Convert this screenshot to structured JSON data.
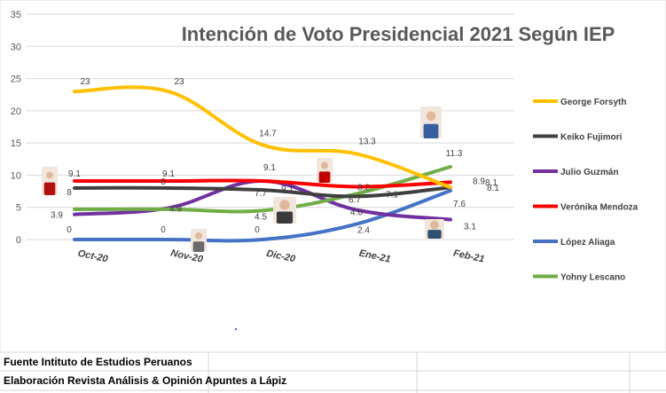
{
  "chart_data": {
    "type": "line",
    "title": "Intención de Voto Presidencial 2021 Según IEP",
    "categories": [
      "Oct-20",
      "Nov-20",
      "Dic-20",
      "Ene-21",
      "Feb-21"
    ],
    "ylim": [
      0,
      35
    ],
    "yticks": [
      "0",
      "5",
      "10",
      "15",
      "20",
      "25",
      "30",
      "35"
    ],
    "grid": true,
    "legend_position": "right",
    "series": [
      {
        "name": "George Forsyth",
        "color": "#FFC000",
        "values": [
          23,
          23,
          14.7,
          13.3,
          8.1
        ],
        "labels": [
          "23",
          "23",
          "14.7",
          "13.3",
          "8.1"
        ]
      },
      {
        "name": "Keiko Fujimori",
        "color": "#404040",
        "values": [
          8,
          8,
          7.7,
          6.7,
          8.1
        ],
        "labels": [
          "8",
          "8",
          "7.7",
          "6.7",
          "8.1"
        ]
      },
      {
        "name": "Julio Guzmán",
        "color": "#7030A0",
        "values": [
          3.9,
          4.9,
          9.1,
          4.6,
          3.1
        ],
        "labels": [
          "3.9",
          "4.9",
          "9.1",
          "4.6",
          "3.1"
        ]
      },
      {
        "name": "Verónika Mendoza",
        "color": "#FF0000",
        "values": [
          9.1,
          9.1,
          9.1,
          8.2,
          8.9
        ],
        "labels": [
          "9.1",
          "9.1",
          "9.1",
          "8.2",
          "8.9"
        ]
      },
      {
        "name": "López Aliaga",
        "color": "#4472C4",
        "values": [
          0,
          0,
          0,
          2.4,
          7.6
        ],
        "labels": [
          "0",
          "0",
          "0",
          "2.4",
          "7.6"
        ]
      },
      {
        "name": "Yohny Lescano",
        "color": "#70AD47",
        "values": [
          4.7,
          4.7,
          4.5,
          7.1,
          11.3
        ],
        "labels": [
          "",
          "",
          "4.5",
          "7.1",
          "11.3"
        ]
      }
    ]
  },
  "footer": {
    "source": "Fuente Intituto de Estudios  Peruanos",
    "credit": "Elaboración Revista Análisis & Opinión Apuntes a Lápiz"
  }
}
